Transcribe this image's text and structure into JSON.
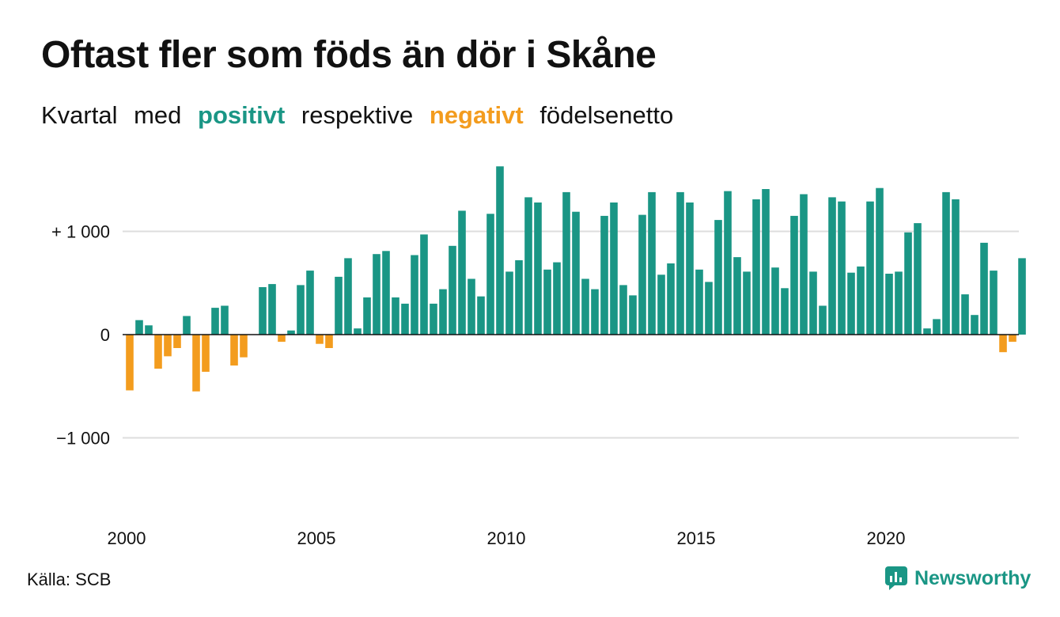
{
  "header": {
    "title": "Oftast fler som föds än dör i Skåne",
    "subtitle_parts": [
      "Kvartal",
      "med",
      "positivt",
      "respektive",
      "negativt",
      "födelsenetto"
    ]
  },
  "footer": {
    "source": "Källa: SCB",
    "brand": "Newsworthy"
  },
  "colors": {
    "positive": "#1a9685",
    "negative": "#f39c1e",
    "grid": "#dddddd",
    "baseline": "#111111"
  },
  "chart_data": {
    "type": "bar",
    "title": "Oftast fler som föds än dör i Skåne",
    "subtitle": "Kvartal med positivt respektive negativt födelsenetto",
    "ylim": [
      -1600,
      1650
    ],
    "yticks": [
      {
        "value": 1000,
        "label": "+ 1 000"
      },
      {
        "value": 0,
        "label": "0"
      },
      {
        "value": -1000,
        "label": "−1 000"
      }
    ],
    "xticks": [
      {
        "year": 2000,
        "label": "2000"
      },
      {
        "year": 2005,
        "label": "2005"
      },
      {
        "year": 2010,
        "label": "2010"
      },
      {
        "year": 2015,
        "label": "2015"
      },
      {
        "year": 2020,
        "label": "2020"
      }
    ],
    "start_year": 2000,
    "start_quarter": 1,
    "values": [
      -540,
      140,
      90,
      -330,
      -210,
      -130,
      180,
      -550,
      -360,
      260,
      280,
      -300,
      -220,
      0,
      460,
      490,
      -70,
      40,
      480,
      620,
      -90,
      -130,
      560,
      740,
      60,
      360,
      780,
      810,
      360,
      300,
      770,
      970,
      300,
      440,
      860,
      1200,
      540,
      370,
      1170,
      1630,
      610,
      720,
      1330,
      1280,
      630,
      700,
      1380,
      1190,
      540,
      440,
      1150,
      1280,
      480,
      380,
      1160,
      1380,
      580,
      690,
      1380,
      1280,
      630,
      510,
      1110,
      1390,
      750,
      610,
      1310,
      1410,
      650,
      450,
      1150,
      1360,
      610,
      280,
      1330,
      1290,
      600,
      660,
      1290,
      1420,
      590,
      610,
      990,
      1080,
      60,
      150,
      1380,
      1310,
      390,
      190,
      890,
      620,
      -170,
      -70,
      740
    ]
  }
}
